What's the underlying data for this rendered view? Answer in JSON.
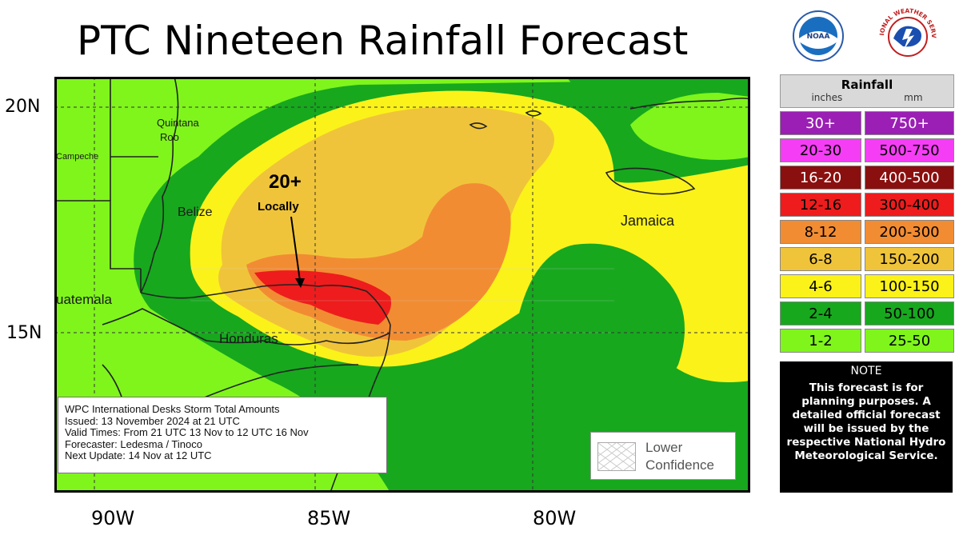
{
  "title": "PTC Nineteen Rainfall Forecast",
  "logos": {
    "noaa": "NOAA",
    "nws": "NATIONAL WEATHER SERVICE"
  },
  "axes": {
    "lat_labels": [
      "20N",
      "15N"
    ],
    "lon_labels": [
      "90W",
      "85W",
      "80W"
    ]
  },
  "map_labels": {
    "quintana": "Quintana",
    "roo": "Roo",
    "campeche": "Campeche",
    "belize": "Belize",
    "guatemala": "uatemala",
    "honduras": "Honduras",
    "jamaica": "Jamaica",
    "callout_big": "20+",
    "callout_small": "Locally"
  },
  "legend": {
    "title": "Rainfall",
    "unit_in": "inches",
    "unit_mm": "mm",
    "rows": [
      {
        "in": "30+",
        "mm": "750+",
        "color": "#9b1fb5",
        "text": "#ffffff"
      },
      {
        "in": "20-30",
        "mm": "500-750",
        "color": "#f53df5",
        "text": "#000000"
      },
      {
        "in": "16-20",
        "mm": "400-500",
        "color": "#8a0f0f",
        "text": "#ffffff"
      },
      {
        "in": "12-16",
        "mm": "300-400",
        "color": "#ee1c1c",
        "text": "#000000"
      },
      {
        "in": "8-12",
        "mm": "200-300",
        "color": "#f28c33",
        "text": "#000000"
      },
      {
        "in": "6-8",
        "mm": "150-200",
        "color": "#f0c43a",
        "text": "#000000"
      },
      {
        "in": "4-6",
        "mm": "100-150",
        "color": "#fbf21a",
        "text": "#000000"
      },
      {
        "in": "2-4",
        "mm": "50-100",
        "color": "#17a81e",
        "text": "#000000"
      },
      {
        "in": "1-2",
        "mm": "25-50",
        "color": "#7ff51c",
        "text": "#000000"
      }
    ]
  },
  "note": {
    "title": "NOTE",
    "body": "This forecast is for planning purposes. A detailed official forecast will be issued by the respective National Hydro Meteorological Service."
  },
  "info": {
    "line1": "WPC International Desks Storm Total Amounts",
    "line2": "Issued:  13 November 2024 at 21 UTC",
    "line3": "Valid Times:  From 21 UTC 13 Nov  to  12 UTC 16 Nov",
    "line4": "Forecaster:  Ledesma / Tinoco",
    "line5": "Next Update: 14 Nov at 12 UTC"
  },
  "confidence": {
    "line1": "Lower",
    "line2": "Confidence"
  }
}
